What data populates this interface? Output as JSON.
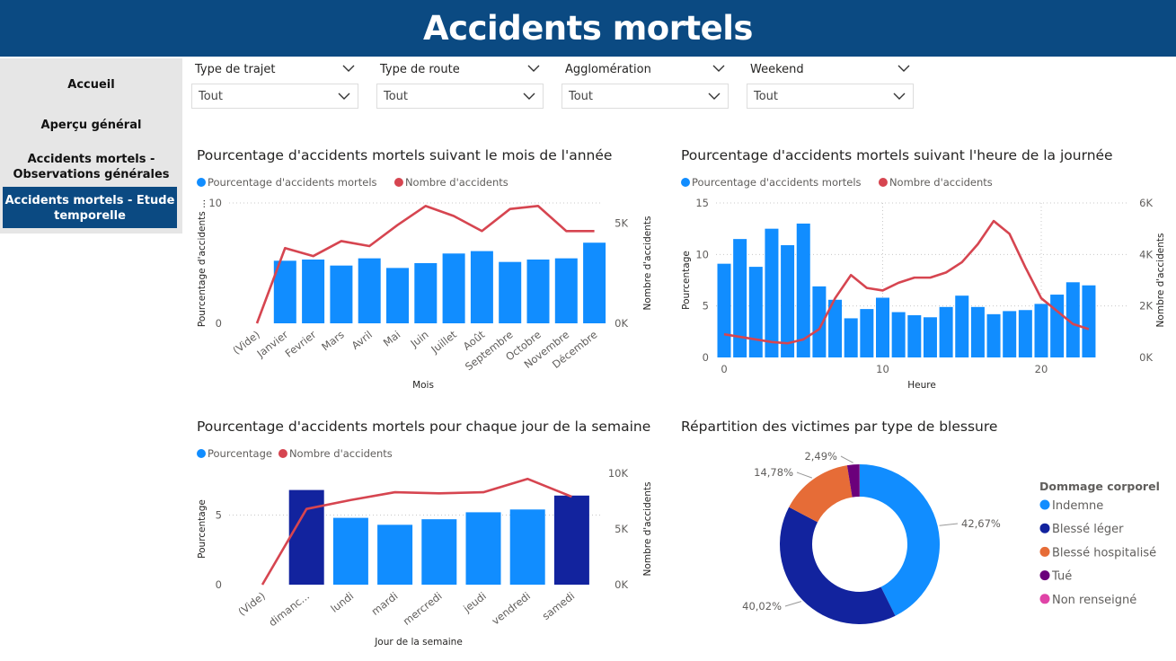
{
  "header": {
    "title": "Accidents mortels"
  },
  "nav": {
    "items": [
      {
        "label": "Accueil"
      },
      {
        "label": "Aperçu général"
      },
      {
        "label_line1": "Accidents mortels -",
        "label_line2": "Observations générales"
      },
      {
        "label_line1": "Accidents mortels - Etude",
        "label_line2": "temporelle",
        "active": true
      }
    ]
  },
  "slicers": [
    {
      "title": "Type de trajet",
      "value": "Tout"
    },
    {
      "title": "Type de route",
      "value": "Tout"
    },
    {
      "title": "Agglomération",
      "value": "Tout"
    },
    {
      "title": "Weekend",
      "value": "Tout"
    }
  ],
  "colors": {
    "header_bg": "#0b4a82",
    "bar": "#118dff",
    "bar_highlight": "#12239e",
    "line": "#d64550",
    "orange": "#e66c37",
    "purple": "#6b007b",
    "pink": "#e044a7"
  },
  "chart_data": [
    {
      "id": "mois",
      "type": "bar+line",
      "title": "Pourcentage d'accidents mortels suivant le mois de l'année",
      "legend": [
        "Pourcentage d'accidents mortels",
        "Nombre d'accidents"
      ],
      "xlabel": "Mois",
      "ylabel": "Pourcentage d'accidents ...",
      "y2label": "Nombre d'accidents",
      "categories": [
        "(Vide)",
        "Janvier",
        "Fevrier",
        "Mars",
        "Avril",
        "Mai",
        "Juin",
        "Juillet",
        "Août",
        "Septembre",
        "Octobre",
        "Novembre",
        "Décembre"
      ],
      "ylim": [
        0,
        10
      ],
      "yticks": [
        "0",
        "10"
      ],
      "y2lim": [
        0,
        6000
      ],
      "y2ticks": [
        "0K",
        "5K"
      ],
      "series": [
        {
          "name": "Pourcentage d'accidents mortels",
          "kind": "bar",
          "values": [
            null,
            5.2,
            5.3,
            4.8,
            5.4,
            4.6,
            5.0,
            5.8,
            6.0,
            5.1,
            5.3,
            5.4,
            6.7
          ]
        },
        {
          "name": "Nombre d'accidents",
          "kind": "line",
          "values": [
            0,
            3750,
            3350,
            4100,
            3850,
            4900,
            5850,
            5350,
            4600,
            5700,
            5850,
            4600,
            4600
          ]
        }
      ]
    },
    {
      "id": "heure",
      "type": "bar+line",
      "title": "Pourcentage d'accidents mortels suivant l'heure de la journée",
      "legend": [
        "Pourcentage d'accidents mortels",
        "Nombre d'accidents"
      ],
      "xlabel": "Heure",
      "ylabel": "Pourcentage",
      "y2label": "Nombre d'accidents",
      "x": [
        0,
        1,
        2,
        3,
        4,
        5,
        6,
        7,
        8,
        9,
        10,
        11,
        12,
        13,
        14,
        15,
        16,
        17,
        18,
        19,
        20,
        21,
        22,
        23
      ],
      "xticks": [
        "0",
        "10",
        "20"
      ],
      "ylim": [
        0,
        15
      ],
      "yticks": [
        "0",
        "5",
        "10",
        "15"
      ],
      "y2lim": [
        0,
        6000
      ],
      "y2ticks": [
        "0K",
        "2K",
        "4K",
        "6K"
      ],
      "series": [
        {
          "name": "Pourcentage d'accidents mortels",
          "kind": "bar",
          "values": [
            9.1,
            11.5,
            8.8,
            12.5,
            10.9,
            13.0,
            6.9,
            5.6,
            3.8,
            4.7,
            5.8,
            4.4,
            4.1,
            3.9,
            4.9,
            6.0,
            4.9,
            4.2,
            4.5,
            4.6,
            5.2,
            6.1,
            7.3,
            7.0
          ]
        },
        {
          "name": "Nombre d'accidents",
          "kind": "line",
          "values": [
            900,
            800,
            700,
            600,
            550,
            700,
            1100,
            2300,
            3200,
            2700,
            2600,
            2900,
            3100,
            3100,
            3300,
            3700,
            4400,
            5300,
            4800,
            3500,
            2300,
            1800,
            1300,
            1100
          ]
        }
      ]
    },
    {
      "id": "jour",
      "type": "bar+line",
      "title": "Pourcentage d'accidents mortels pour chaque jour de la semaine",
      "legend": [
        "Pourcentage",
        "Nombre d'accidents"
      ],
      "xlabel": "Jour de la semaine",
      "ylabel": "Pourcentage",
      "y2label": "Nombre d'accidents",
      "categories": [
        "(Vide)",
        "dimanc...",
        "lundi",
        "mardi",
        "mercredi",
        "jeudi",
        "vendredi",
        "samedi"
      ],
      "ylim": [
        0,
        8
      ],
      "yticks": [
        "0",
        "5"
      ],
      "y2lim": [
        0,
        10000
      ],
      "y2ticks": [
        "0K",
        "5K",
        "10K"
      ],
      "series": [
        {
          "name": "Pourcentage",
          "kind": "bar",
          "values": [
            null,
            6.8,
            4.8,
            4.3,
            4.7,
            5.2,
            5.4,
            6.4
          ],
          "highlight": [
            false,
            true,
            false,
            false,
            false,
            false,
            false,
            true
          ]
        },
        {
          "name": "Nombre d'accidents",
          "kind": "line",
          "values": [
            0,
            6800,
            7600,
            8300,
            8200,
            8300,
            9500,
            7900
          ]
        }
      ]
    },
    {
      "id": "blessure",
      "type": "pie",
      "title": "Répartition des victimes par type de blessure",
      "legend_title": "Dommage corporel",
      "labels": [
        "Indemne",
        "Blessé léger",
        "Blessé hospitalisé",
        "Tué",
        "Non renseigné"
      ],
      "values": [
        42.67,
        40.02,
        14.78,
        2.49,
        0.04
      ],
      "value_labels": [
        "42,67%",
        "40,02%",
        "14,78%",
        "2,49%",
        ""
      ],
      "colors": [
        "#118dff",
        "#12239e",
        "#e66c37",
        "#6b007b",
        "#e044a7"
      ]
    }
  ]
}
